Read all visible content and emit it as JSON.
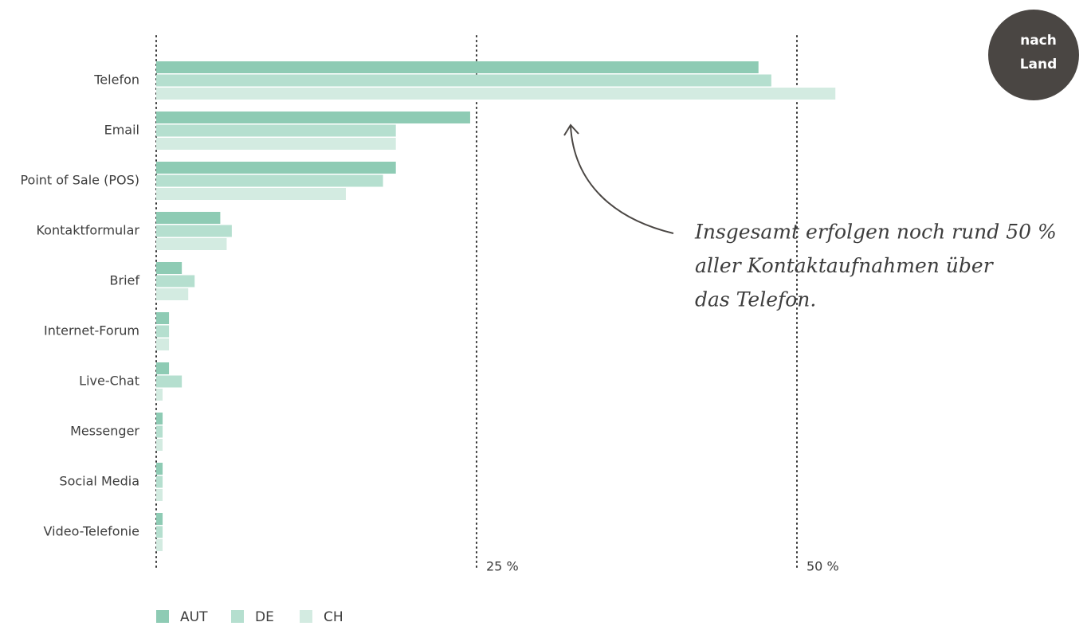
{
  "chart_data": {
    "type": "bar",
    "orientation": "horizontal",
    "categories": [
      "Telefon",
      "Email",
      "Point of Sale (POS)",
      "Kontaktformular",
      "Brief",
      "Internet-Forum",
      "Live-Chat",
      "Messenger",
      "Social Media",
      "Video-Telefonie"
    ],
    "series": [
      {
        "name": "AUT",
        "color": "#8ecbb4",
        "values": [
          47,
          24.5,
          18.7,
          5,
          2,
          1,
          1,
          0.5,
          0.5,
          0.5
        ]
      },
      {
        "name": "DE",
        "color": "#b5dfcf",
        "values": [
          48,
          18.7,
          17.7,
          5.9,
          3,
          1,
          2,
          0.5,
          0.5,
          0.5
        ]
      },
      {
        "name": "CH",
        "color": "#d3ebe1",
        "values": [
          53,
          18.7,
          14.8,
          5.5,
          2.5,
          1,
          0.5,
          0.5,
          0.5,
          0.5
        ]
      }
    ],
    "xlim": [
      0,
      60
    ],
    "xticks": [
      {
        "value": 25,
        "label": "25 %"
      },
      {
        "value": 50,
        "label": "50 %"
      }
    ],
    "grid": true,
    "legend": "bottom-left",
    "annotation": [
      "Insgesamt erfolgen noch rund 50 %",
      "aller Kontaktaufnahmen über",
      "das Telefon."
    ],
    "badge": [
      "nach",
      "Land"
    ]
  }
}
